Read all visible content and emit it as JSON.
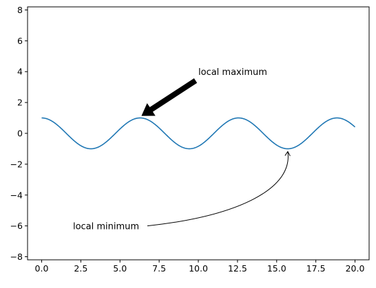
{
  "chart_data": {
    "type": "line",
    "title": "",
    "xlabel": "",
    "ylabel": "",
    "xlim": [
      -0.9,
      20.9
    ],
    "ylim": [
      -8.2,
      8.2
    ],
    "xticks": [
      0.0,
      2.5,
      5.0,
      7.5,
      10.0,
      12.5,
      15.0,
      17.5,
      20.0
    ],
    "xtick_labels": [
      "0.0",
      "2.5",
      "5.0",
      "7.5",
      "10.0",
      "12.5",
      "15.0",
      "17.5",
      "20.0"
    ],
    "yticks": [
      -8,
      -6,
      -4,
      -2,
      0,
      2,
      4,
      6,
      8
    ],
    "ytick_labels": [
      "−8",
      "−6",
      "−4",
      "−2",
      "0",
      "2",
      "4",
      "6",
      "8"
    ],
    "grid": false,
    "series": [
      {
        "function": "cos(x)",
        "color": "#1f77b4",
        "x_start": 0.0,
        "x_end": 20.0
      }
    ],
    "annotations": [
      {
        "text": "local maximum",
        "xy": [
          6.283,
          1.0
        ],
        "text_xy": [
          10.0,
          4.0
        ],
        "arrow": "thick-black"
      },
      {
        "text": "local minimum",
        "xy": [
          15.708,
          -1.0
        ],
        "text_xy": [
          2.0,
          -6.0
        ],
        "arrow": "curved-thin"
      }
    ]
  }
}
